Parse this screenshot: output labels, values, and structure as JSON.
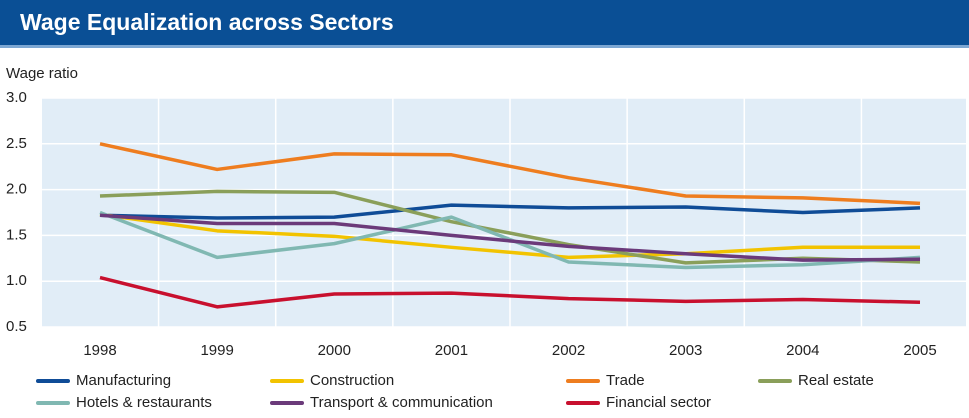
{
  "chart_data": {
    "type": "line",
    "title": "Wage Equalization across Sectors",
    "y_label": "Wage ratio",
    "categories": [
      "1998",
      "1999",
      "2000",
      "2001",
      "2002",
      "2003",
      "2004",
      "2005"
    ],
    "ylim": [
      0.5,
      3.0
    ],
    "yticks": [
      {
        "value": 0.5,
        "label": "0.5"
      },
      {
        "value": 1.0,
        "label": "1.0"
      },
      {
        "value": 1.5,
        "label": "1.5"
      },
      {
        "value": 2.0,
        "label": "2.0"
      },
      {
        "value": 2.5,
        "label": "2.5"
      },
      {
        "value": 3.0,
        "label": "3.0"
      }
    ],
    "grid": true,
    "series": [
      {
        "name": "Manufacturing",
        "color": "#0f4c97",
        "values": [
          1.72,
          1.69,
          1.7,
          1.83,
          1.8,
          1.81,
          1.75,
          1.8
        ]
      },
      {
        "name": "Construction",
        "color": "#f2c300",
        "values": [
          1.73,
          1.55,
          1.49,
          1.37,
          1.26,
          1.3,
          1.37,
          1.37
        ]
      },
      {
        "name": "Trade",
        "color": "#ee7d1f",
        "values": [
          2.5,
          2.22,
          2.39,
          2.38,
          2.13,
          1.93,
          1.91,
          1.85
        ]
      },
      {
        "name": "Real estate",
        "color": "#8a9f5a",
        "values": [
          1.93,
          1.98,
          1.97,
          1.65,
          1.4,
          1.2,
          1.25,
          1.21
        ]
      },
      {
        "name": "Hotels & restaurants",
        "color": "#80b8b2",
        "values": [
          1.75,
          1.26,
          1.41,
          1.7,
          1.21,
          1.15,
          1.18,
          1.26
        ]
      },
      {
        "name": "Transport & communication",
        "color": "#6b3a7a",
        "values": [
          1.72,
          1.63,
          1.63,
          1.5,
          1.38,
          1.3,
          1.23,
          1.24
        ]
      },
      {
        "name": "Financial sector",
        "color": "#c8102e",
        "values": [
          1.04,
          0.72,
          0.86,
          0.87,
          0.81,
          0.78,
          0.8,
          0.77
        ]
      }
    ]
  }
}
